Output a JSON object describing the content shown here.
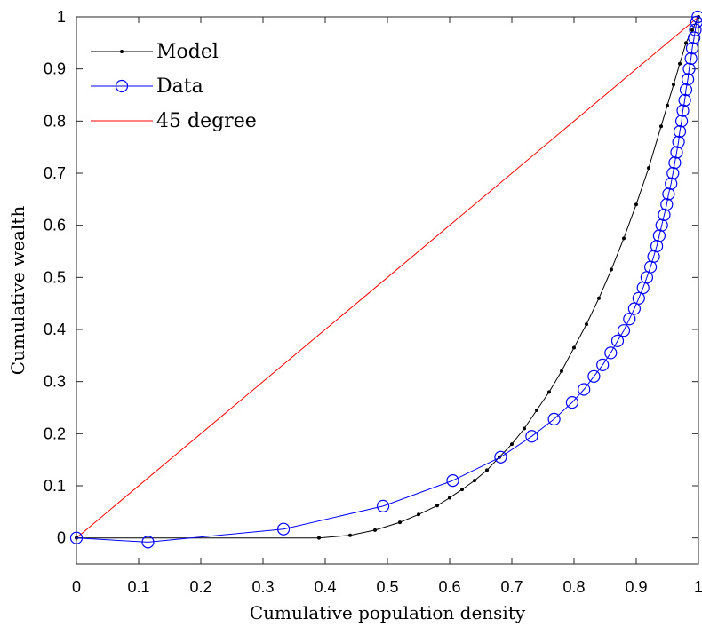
{
  "chart_data": {
    "type": "line",
    "xlabel": "Cumulative population density",
    "ylabel": "Cumulative wealth",
    "xlim": [
      0,
      1
    ],
    "ylim": [
      -0.05,
      1
    ],
    "xticks": [
      "0",
      "0.1",
      "0.2",
      "0.3",
      "0.4",
      "0.5",
      "0.6",
      "0.7",
      "0.8",
      "0.9",
      "1"
    ],
    "yticks": [
      "0",
      "0.1",
      "0.2",
      "0.3",
      "0.4",
      "0.5",
      "0.6",
      "0.7",
      "0.8",
      "0.9",
      "1"
    ],
    "grid": false,
    "legend_position": "top-left",
    "series": [
      {
        "name": "Model",
        "color": "#000000",
        "marker": "dot",
        "x": [
          0,
          0.39,
          0.44,
          0.48,
          0.52,
          0.55,
          0.58,
          0.6,
          0.62,
          0.64,
          0.66,
          0.68,
          0.7,
          0.72,
          0.74,
          0.76,
          0.78,
          0.8,
          0.82,
          0.84,
          0.86,
          0.88,
          0.9,
          0.92,
          0.94,
          0.95,
          0.96,
          0.97,
          0.98,
          0.99,
          1.0
        ],
        "y": [
          0,
          0,
          0.005,
          0.015,
          0.03,
          0.045,
          0.062,
          0.077,
          0.093,
          0.11,
          0.13,
          0.155,
          0.18,
          0.21,
          0.245,
          0.28,
          0.32,
          0.365,
          0.41,
          0.46,
          0.515,
          0.575,
          0.64,
          0.71,
          0.79,
          0.83,
          0.87,
          0.91,
          0.95,
          0.975,
          1.0
        ]
      },
      {
        "name": "Data",
        "color": "#0000ff",
        "marker": "circle",
        "x": [
          0,
          0.115,
          0.333,
          0.493,
          0.605,
          0.682,
          0.732,
          0.768,
          0.797,
          0.816,
          0.832,
          0.846,
          0.859,
          0.87,
          0.88,
          0.889,
          0.897,
          0.904,
          0.911,
          0.917,
          0.923,
          0.928,
          0.933,
          0.937,
          0.941,
          0.945,
          0.949,
          0.952,
          0.956,
          0.959,
          0.962,
          0.965,
          0.968,
          0.97,
          0.973,
          0.975,
          0.978,
          0.98,
          0.983,
          0.985,
          0.988,
          0.99,
          0.993,
          0.995,
          0.997,
          0.999
        ],
        "y": [
          0,
          -0.008,
          0.017,
          0.061,
          0.11,
          0.155,
          0.195,
          0.228,
          0.26,
          0.285,
          0.31,
          0.332,
          0.355,
          0.378,
          0.398,
          0.42,
          0.44,
          0.46,
          0.48,
          0.5,
          0.52,
          0.54,
          0.56,
          0.58,
          0.6,
          0.62,
          0.64,
          0.66,
          0.68,
          0.7,
          0.72,
          0.74,
          0.76,
          0.78,
          0.8,
          0.82,
          0.84,
          0.86,
          0.88,
          0.9,
          0.92,
          0.94,
          0.96,
          0.975,
          0.99,
          1.0
        ]
      },
      {
        "name": "45 degree",
        "color": "#ff0000",
        "marker": "none",
        "x": [
          0,
          1
        ],
        "y": [
          0,
          1
        ]
      }
    ]
  }
}
